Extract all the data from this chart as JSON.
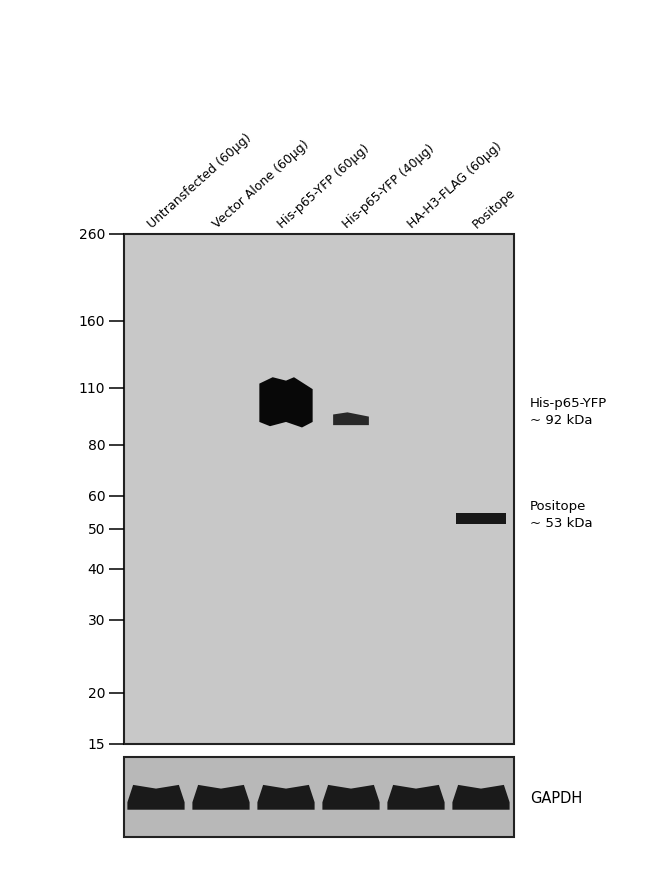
{
  "fig_width": 6.5,
  "fig_height": 8.87,
  "bg_color": "#ffffff",
  "gel_bg": "#c8c8c8",
  "gapdh_bg": "#b8b8b8",
  "lane_labels": [
    "Untransfected (60μg)",
    "Vector Alone (60μg)",
    "His-p65-YFP (60μg)",
    "His-p65-YFP (40μg)",
    "HA-H3-FLAG (60μg)",
    "Positope"
  ],
  "mw_values": [
    260,
    160,
    110,
    80,
    60,
    50,
    40,
    30,
    20,
    15
  ],
  "annotation1_text": "His-p65-YFP\n~ 92 kDa",
  "annotation2_text": "Positope\n~ 53 kDa",
  "gapdh_label": "GAPDH",
  "band_color": "#0d0d0d",
  "label_rotation": 42,
  "font_size_labels": 9,
  "font_size_mw": 10,
  "font_size_annot": 9.5
}
